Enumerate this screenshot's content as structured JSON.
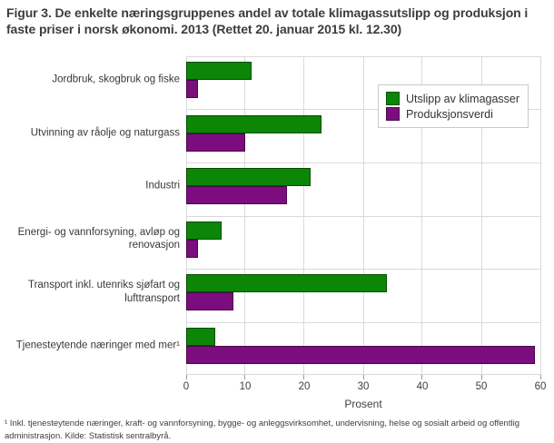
{
  "title": "Figur 3. De enkelte næringsgruppenes andel av totale klimagassutslipp og produksjon i faste priser i norsk økonomi. 2013 (Rettet 20. januar 2015 kl. 12.30)",
  "footnote": "¹ Inkl. tjenesteytende næringer, kraft- og vannforsyning, bygge- og anleggsvirksomhet, undervisning, helse og sosialt arbeid og offentlig administrasjon. Kilde: Statistisk sentralbyrå.",
  "chart_data": {
    "type": "bar",
    "orientation": "horizontal",
    "title": "Figur 3. De enkelte næringsgruppenes andel av totale klimagassutslipp og produksjon i faste priser i norsk økonomi. 2013 (Rettet 20. januar 2015 kl. 12.30)",
    "categories": [
      "Jordbruk, skogbruk og fiske",
      "Utvinning av råolje og naturgass",
      "Industri",
      "Energi- og vannforsyning, avløp og renovasjon",
      "Transport inkl. utenriks sjøfart og lufttransport",
      "Tjenesteytende næringer med mer¹"
    ],
    "series": [
      {
        "name": "Utslipp av klimagasser",
        "color": "#0b8606",
        "values": [
          11,
          23,
          21,
          6,
          34,
          5
        ]
      },
      {
        "name": "Produksjonsverdi",
        "color": "#7c0d7e",
        "values": [
          2,
          10,
          17,
          2,
          8,
          59
        ]
      }
    ],
    "xlabel": "Prosent",
    "xlim": [
      0,
      60
    ],
    "xticks": [
      0,
      10,
      20,
      30,
      40,
      50,
      60
    ],
    "grid": true,
    "legend_position": "top-right"
  },
  "colors": {
    "bar_green": "#0b8606",
    "bar_purple": "#7c0d7e",
    "gridline": "#dadada",
    "text": "#3c3c3c",
    "background": "#ffffff"
  }
}
